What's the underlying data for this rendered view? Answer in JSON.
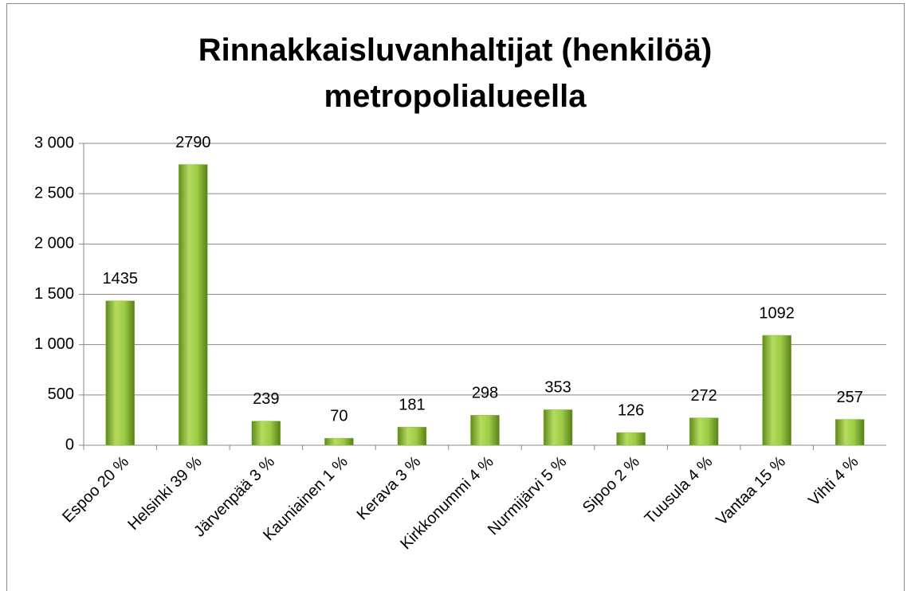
{
  "chart_data": {
    "type": "bar",
    "title": "Rinnakkaisluvanhaltijat (henkilöä) metropolialueella",
    "categories": [
      "Espoo 20 %",
      "Helsinki 39 %",
      "Järvenpää 3 %",
      "Kauniainen 1 %",
      "Kerava 3 %",
      "Kirkkonummi 4 %",
      "Nurmijärvi 5 %",
      "Sipoo 2 %",
      "Tuusula 4 %",
      "Vantaa 15 %",
      "Vihti 4 %"
    ],
    "values": [
      1435,
      2790,
      239,
      70,
      181,
      298,
      353,
      126,
      272,
      1092,
      257
    ],
    "color": "#8cb83a",
    "ylim": [
      0,
      3000
    ],
    "yticks": [
      0,
      500,
      {
        "value": 1000,
        "label": "1 000"
      },
      {
        "value": 1500,
        "label": "1 500"
      },
      {
        "value": 2000,
        "label": "2 000"
      },
      {
        "value": 2500,
        "label": "2 500"
      },
      {
        "value": 3000,
        "label": "3 000"
      }
    ],
    "grid": true
  }
}
